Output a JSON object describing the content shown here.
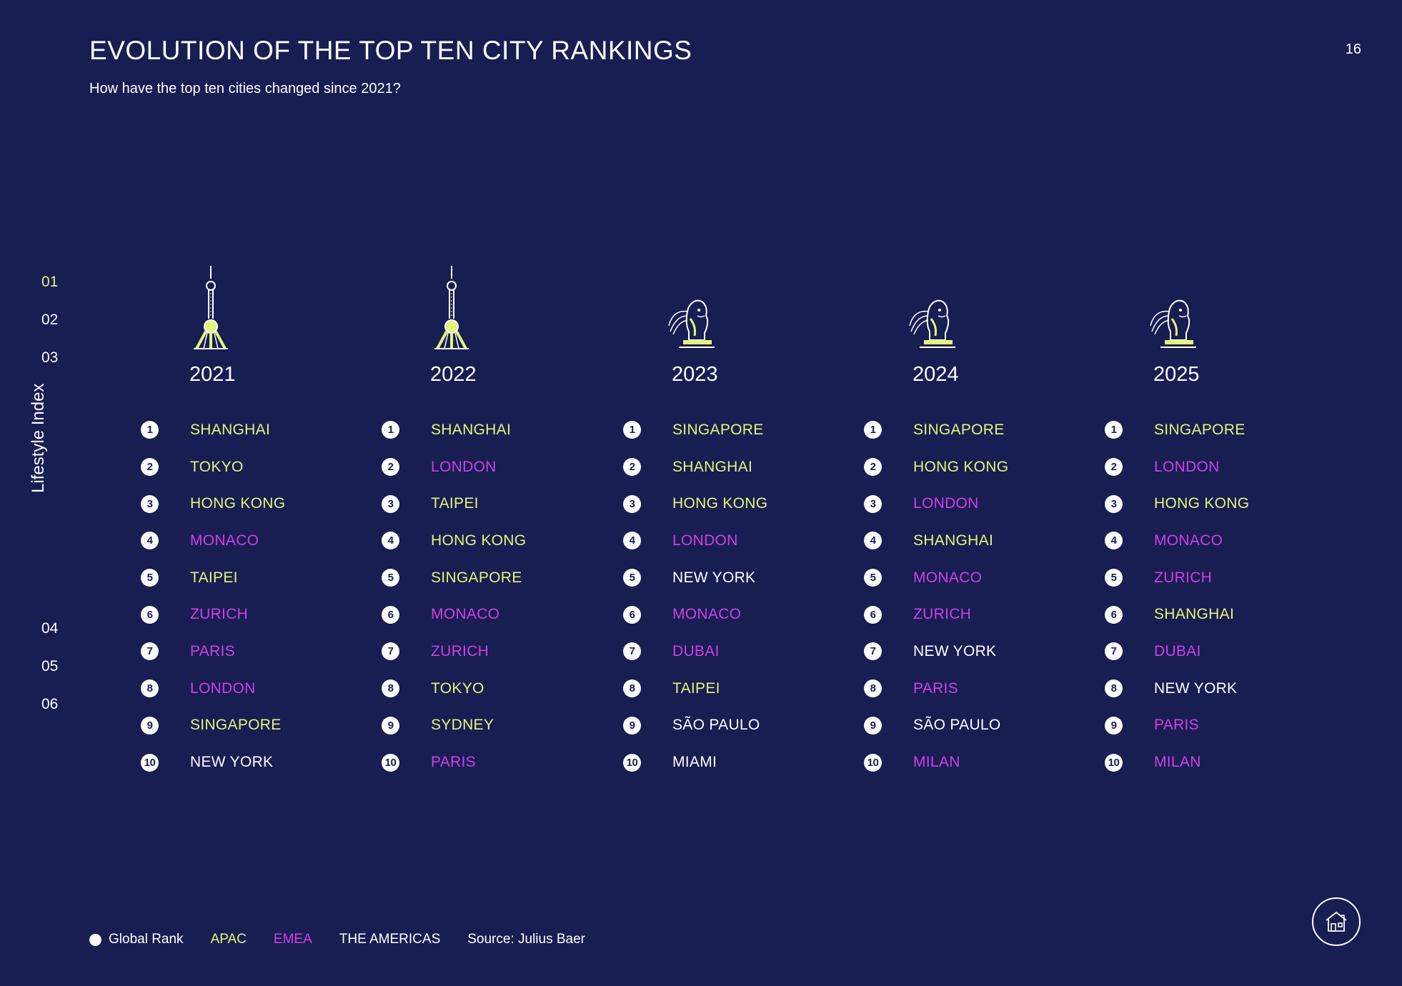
{
  "header": {
    "title": "EVOLUTION OF THE TOP TEN CITY RANKINGS",
    "subtitle": "How have the top ten cities changed since 2021?",
    "page_number": "16"
  },
  "nav": {
    "items": [
      "01",
      "02",
      "03",
      "04",
      "05",
      "06"
    ],
    "active": "01",
    "section_label": "Lifestyle Index"
  },
  "colors": {
    "background": "#181e52",
    "apac": "#e2f57a",
    "emea": "#cf3fe6",
    "americas": "#ffffff"
  },
  "chart_data": {
    "type": "table",
    "title": "EVOLUTION OF THE TOP TEN CITY RANKINGS",
    "columns": [
      {
        "year": "2021",
        "landmark_icon": "tv-tower-icon",
        "cities": [
          {
            "rank": 1,
            "name": "SHANGHAI",
            "region": "apac"
          },
          {
            "rank": 2,
            "name": "TOKYO",
            "region": "apac"
          },
          {
            "rank": 3,
            "name": "HONG KONG",
            "region": "apac"
          },
          {
            "rank": 4,
            "name": "MONACO",
            "region": "emea"
          },
          {
            "rank": 5,
            "name": "TAIPEI",
            "region": "apac"
          },
          {
            "rank": 6,
            "name": "ZURICH",
            "region": "emea"
          },
          {
            "rank": 7,
            "name": "PARIS",
            "region": "emea"
          },
          {
            "rank": 8,
            "name": "LONDON",
            "region": "emea"
          },
          {
            "rank": 9,
            "name": "SINGAPORE",
            "region": "apac"
          },
          {
            "rank": 10,
            "name": "NEW YORK",
            "region": "americas"
          }
        ]
      },
      {
        "year": "2022",
        "landmark_icon": "tv-tower-icon",
        "cities": [
          {
            "rank": 1,
            "name": "SHANGHAI",
            "region": "apac"
          },
          {
            "rank": 2,
            "name": "LONDON",
            "region": "emea"
          },
          {
            "rank": 3,
            "name": "TAIPEI",
            "region": "apac"
          },
          {
            "rank": 4,
            "name": "HONG KONG",
            "region": "apac"
          },
          {
            "rank": 5,
            "name": "SINGAPORE",
            "region": "apac"
          },
          {
            "rank": 6,
            "name": "MONACO",
            "region": "emea"
          },
          {
            "rank": 7,
            "name": "ZURICH",
            "region": "emea"
          },
          {
            "rank": 8,
            "name": "TOKYO",
            "region": "apac"
          },
          {
            "rank": 9,
            "name": "SYDNEY",
            "region": "apac"
          },
          {
            "rank": 10,
            "name": "PARIS",
            "region": "emea"
          }
        ]
      },
      {
        "year": "2023",
        "landmark_icon": "merlion-icon",
        "cities": [
          {
            "rank": 1,
            "name": "SINGAPORE",
            "region": "apac"
          },
          {
            "rank": 2,
            "name": "SHANGHAI",
            "region": "apac"
          },
          {
            "rank": 3,
            "name": "HONG KONG",
            "region": "apac"
          },
          {
            "rank": 4,
            "name": "LONDON",
            "region": "emea"
          },
          {
            "rank": 5,
            "name": "NEW YORK",
            "region": "americas"
          },
          {
            "rank": 6,
            "name": "MONACO",
            "region": "emea"
          },
          {
            "rank": 7,
            "name": "DUBAI",
            "region": "emea"
          },
          {
            "rank": 8,
            "name": "TAIPEI",
            "region": "apac"
          },
          {
            "rank": 9,
            "name": "SÃO PAULO",
            "region": "americas"
          },
          {
            "rank": 10,
            "name": "MIAMI",
            "region": "americas"
          }
        ]
      },
      {
        "year": "2024",
        "landmark_icon": "merlion-icon",
        "cities": [
          {
            "rank": 1,
            "name": "SINGAPORE",
            "region": "apac"
          },
          {
            "rank": 2,
            "name": "HONG KONG",
            "region": "apac"
          },
          {
            "rank": 3,
            "name": "LONDON",
            "region": "emea"
          },
          {
            "rank": 4,
            "name": "SHANGHAI",
            "region": "apac"
          },
          {
            "rank": 5,
            "name": "MONACO",
            "region": "emea"
          },
          {
            "rank": 6,
            "name": "ZURICH",
            "region": "emea"
          },
          {
            "rank": 7,
            "name": "NEW YORK",
            "region": "americas"
          },
          {
            "rank": 8,
            "name": "PARIS",
            "region": "emea"
          },
          {
            "rank": 9,
            "name": "SÃO PAULO",
            "region": "americas"
          },
          {
            "rank": 10,
            "name": "MILAN",
            "region": "emea"
          }
        ]
      },
      {
        "year": "2025",
        "landmark_icon": "merlion-icon",
        "cities": [
          {
            "rank": 1,
            "name": "SINGAPORE",
            "region": "apac"
          },
          {
            "rank": 2,
            "name": "LONDON",
            "region": "emea"
          },
          {
            "rank": 3,
            "name": "HONG KONG",
            "region": "apac"
          },
          {
            "rank": 4,
            "name": "MONACO",
            "region": "emea"
          },
          {
            "rank": 5,
            "name": "ZURICH",
            "region": "emea"
          },
          {
            "rank": 6,
            "name": "SHANGHAI",
            "region": "apac"
          },
          {
            "rank": 7,
            "name": "DUBAI",
            "region": "emea"
          },
          {
            "rank": 8,
            "name": "NEW YORK",
            "region": "americas"
          },
          {
            "rank": 9,
            "name": "PARIS",
            "region": "emea"
          },
          {
            "rank": 10,
            "name": "MILAN",
            "region": "emea"
          }
        ]
      }
    ]
  },
  "legend": {
    "global_rank": "Global Rank",
    "apac": "APAC",
    "emea": "EMEA",
    "americas": "THE AMERICAS",
    "source": "Source: Julius Baer"
  },
  "home_button": {
    "icon": "home-icon"
  }
}
